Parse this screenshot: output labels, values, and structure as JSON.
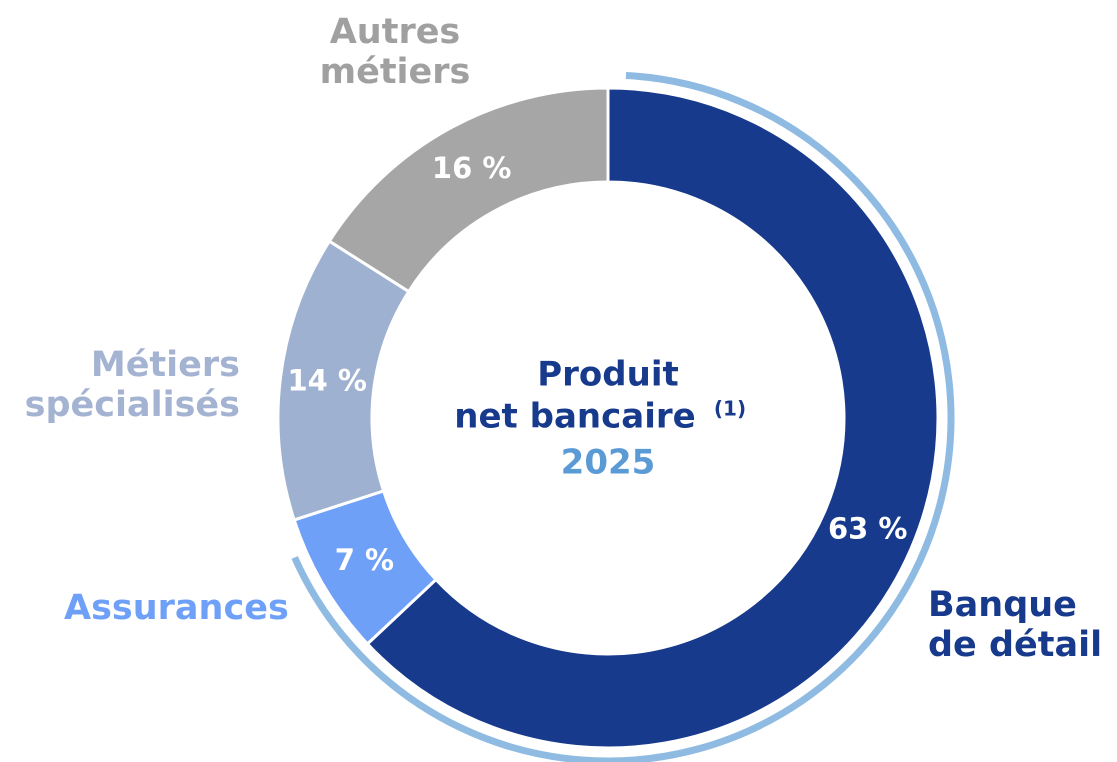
{
  "chart_data": {
    "type": "donut",
    "title": "Produit",
    "subtitle": "net bancaire",
    "footnote_marker": "(1)",
    "year": "2025",
    "categories": [
      "Banque\nde détail",
      "Assurances",
      "Métiers\nspécialisés",
      "Autres\nmétiers"
    ],
    "values": [
      63,
      7,
      14,
      16
    ],
    "value_labels": [
      "63 %",
      "7 %",
      "14 %",
      "16 %"
    ],
    "colors": [
      "#173a8c",
      "#6fa0f8",
      "#9fb1d0",
      "#a6a6a6"
    ]
  }
}
